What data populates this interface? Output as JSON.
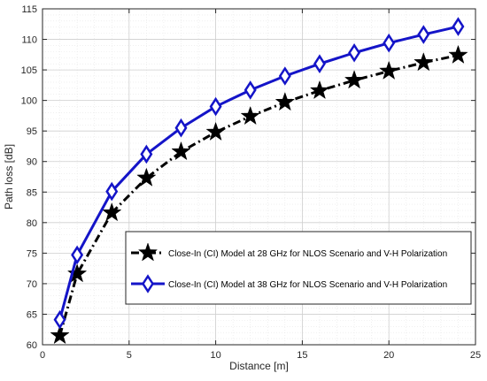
{
  "chart_data": {
    "type": "line",
    "title": "",
    "xlabel": "Distance [m]",
    "ylabel": "Path loss [dB]",
    "xlim": [
      0,
      25
    ],
    "ylim": [
      60,
      115
    ],
    "xticks": [
      0,
      5,
      10,
      15,
      20,
      25
    ],
    "yticks": [
      60,
      65,
      70,
      75,
      80,
      85,
      90,
      95,
      100,
      105,
      110,
      115
    ],
    "grid": true,
    "legend_position": "lower-right",
    "series": [
      {
        "name": "Close-In (CI) Model at 28 GHz for NLOS Scenario and V-H Polarization",
        "color": "#000000",
        "marker": "star",
        "line_style": "dash-dot",
        "x": [
          1,
          2,
          4,
          6,
          8,
          10,
          12,
          14,
          16,
          18,
          20,
          22,
          24
        ],
        "y": [
          61.5,
          71.6,
          81.6,
          87.3,
          91.6,
          94.8,
          97.4,
          99.7,
          101.6,
          103.3,
          104.8,
          106.2,
          107.4
        ]
      },
      {
        "name": "Close-In (CI) Model at 38 GHz for NLOS Scenario and V-H Polarization",
        "color": "#1414c8",
        "marker": "diamond",
        "line_style": "solid",
        "x": [
          1,
          2,
          4,
          6,
          8,
          10,
          12,
          14,
          16,
          18,
          20,
          22,
          24
        ],
        "y": [
          64.1,
          74.7,
          85.1,
          91.2,
          95.5,
          99.0,
          101.7,
          104.0,
          106.0,
          107.8,
          109.4,
          110.8,
          112.1
        ]
      }
    ]
  }
}
